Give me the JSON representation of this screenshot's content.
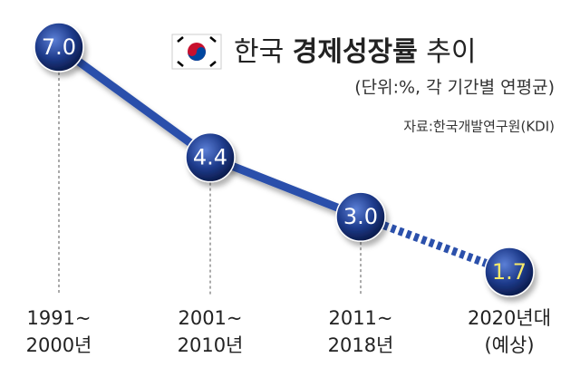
{
  "chart_data": {
    "type": "line",
    "title": [
      "한국",
      "경제성장률",
      "추이"
    ],
    "subtitle": "(단위:%, 각 기간별 연평균)",
    "source": "자료:한국개발연구원(KDI)",
    "categories": [
      [
        "1991~",
        "2000년"
      ],
      [
        "2001~",
        "2010년"
      ],
      [
        "2011~",
        "2018년"
      ],
      [
        "2020년대",
        "(예상)"
      ]
    ],
    "values": [
      7.0,
      4.4,
      3.0,
      1.7
    ],
    "value_labels": [
      "7.0",
      "4.4",
      "3.0",
      "1.7"
    ],
    "color": "#2b50ab",
    "marker_color": "#1d3a8a",
    "label_color": "#ffffff",
    "last_label_color": "#f7ea6a",
    "last_segment_dotted": true
  }
}
